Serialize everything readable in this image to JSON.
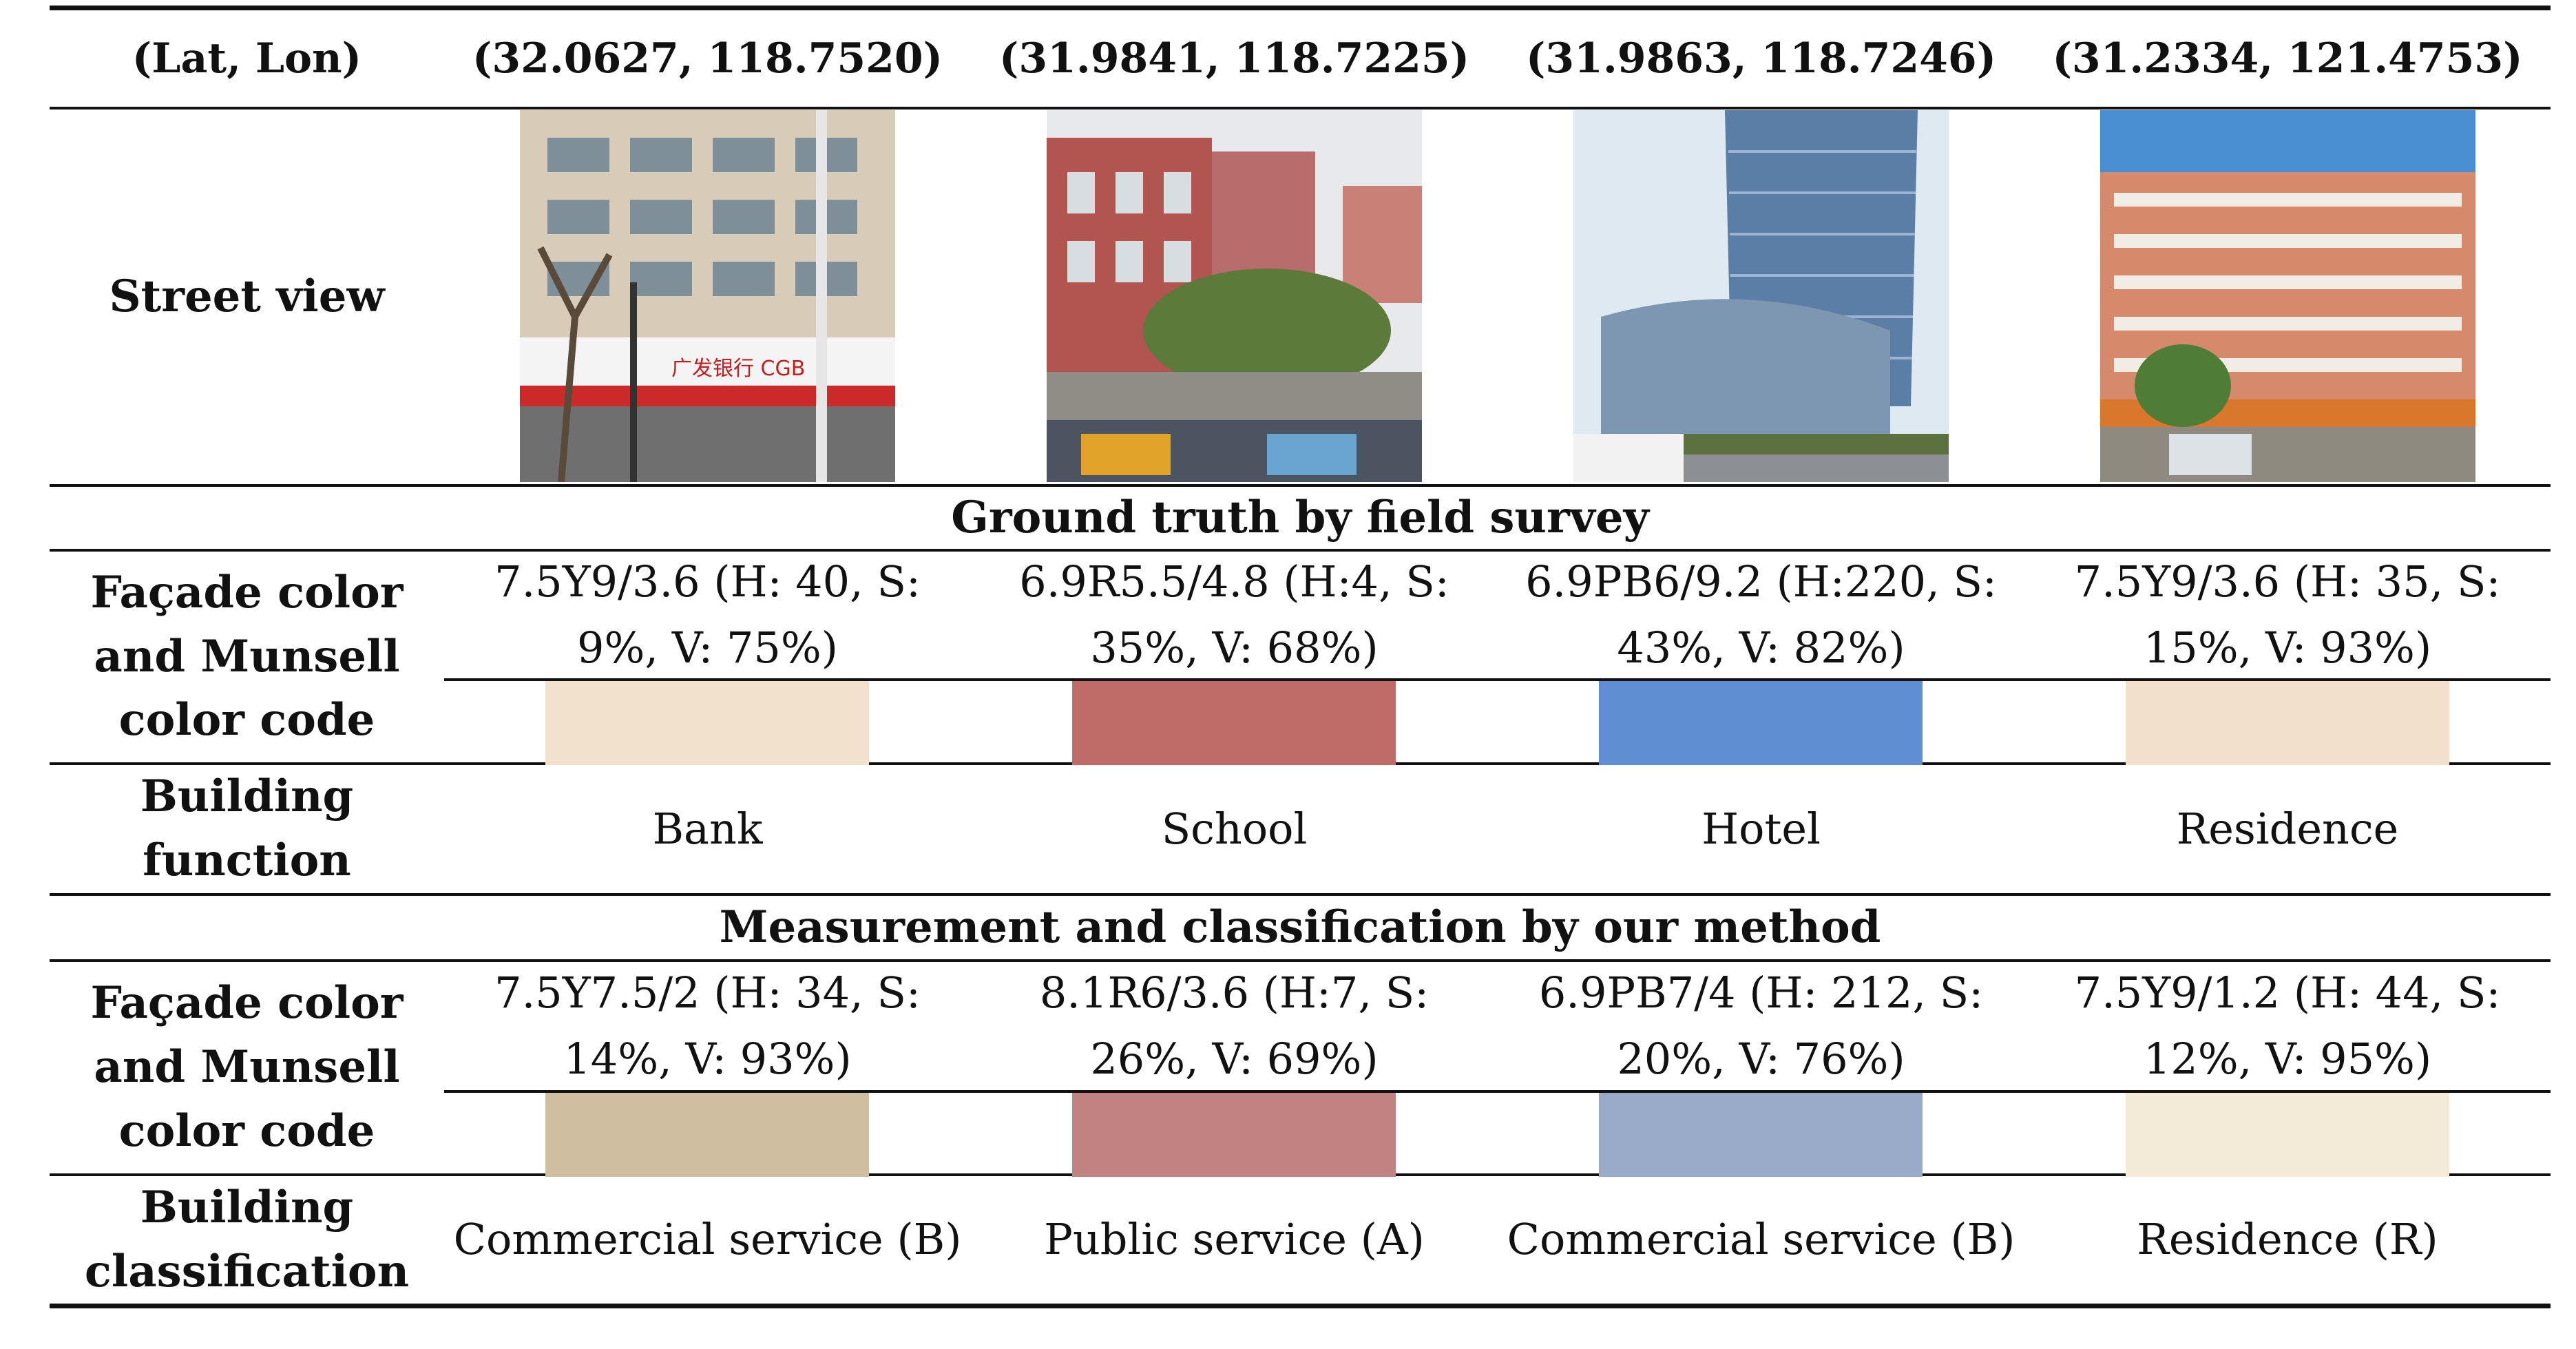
{
  "header": {
    "label": "(Lat, Lon)",
    "coords": [
      "(32.0627, 118.7520)",
      "(31.9841, 118.7225)",
      "(31.9863, 118.7246)",
      "(31.2334, 121.4753)"
    ]
  },
  "street_view": {
    "label": "Street view",
    "images": [
      "bank-street-view",
      "school-street-view",
      "hotel-street-view",
      "residence-street-view"
    ],
    "bank_sign_text": "广发银行 CGB"
  },
  "ground_truth": {
    "section_title": "Ground truth by field survey",
    "color_label": "Façade color and Munsell color code",
    "color_codes": [
      "7.5Y9/3.6 (H: 40, S: 9%, V: 75%)",
      "6.9R5.5/4.8 (H:4, S: 35%, V: 68%)",
      "6.9PB6/9.2 (H:220, S: 43%, V: 82%)",
      "7.5Y9/3.6 (H: 35, S: 15%, V: 93%)"
    ],
    "swatches": [
      "#f2e1cc",
      "#bf6b68",
      "#5f8fd2",
      "#f2e0cd"
    ],
    "function_label": "Building function",
    "functions": [
      "Bank",
      "School",
      "Hotel",
      "Residence"
    ]
  },
  "our_method": {
    "section_title": "Measurement and classification by our method",
    "color_label": "Façade color and Munsell color code",
    "color_codes": [
      "7.5Y7.5/2 (H: 34, S: 14%, V: 93%)",
      "8.1R6/3.6 (H:7, S: 26%, V: 69%)",
      "6.9PB7/4 (H: 212, S: 20%, V: 76%)",
      "7.5Y9/1.2 (H: 44, S: 12%, V: 95%)"
    ],
    "swatches": [
      "#cfbea0",
      "#c08381",
      "#99abc8",
      "#f3ead7"
    ],
    "classification_label": "Building classification",
    "classifications": [
      "Commercial service (B)",
      "Public service (A)",
      "Commercial service (B)",
      "Residence (R)"
    ]
  }
}
